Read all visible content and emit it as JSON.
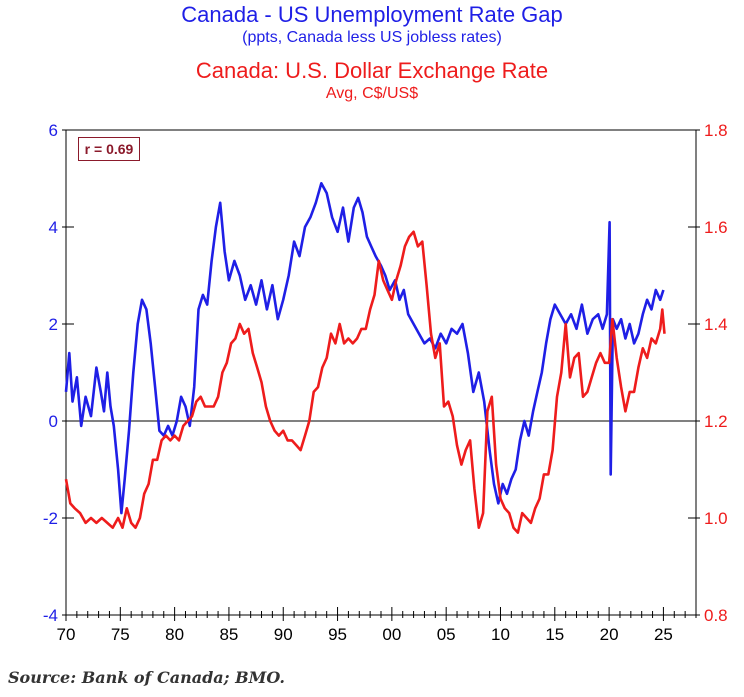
{
  "titles": {
    "line1": "Canada - US Unemployment Rate Gap",
    "line2": "(ppts, Canada less US jobless rates)",
    "line3": "Canada: U.S. Dollar Exchange Rate",
    "line4": "Avg, C$/US$"
  },
  "source": "Source: Bank of Canada; BMO.",
  "annotation": "r = 0.69",
  "colors": {
    "gap": "#1f1fe6",
    "fx": "#ee1c1c",
    "annotation": "#8b1a2b",
    "axis": "#000000"
  },
  "chart_data": {
    "type": "line",
    "x_ticks": [
      "70",
      "75",
      "80",
      "85",
      "90",
      "95",
      "00",
      "05",
      "10",
      "15",
      "20",
      "25"
    ],
    "xlim": [
      1970,
      2028
    ],
    "left_axis": {
      "ticks": [
        "-4",
        "-2",
        "0",
        "2",
        "4",
        "6"
      ],
      "ylim": [
        -4,
        6
      ]
    },
    "right_axis": {
      "ticks": [
        "0.8",
        "1.0",
        "1.2",
        "1.4",
        "1.6",
        "1.8"
      ],
      "ylim": [
        0.8,
        1.8
      ]
    },
    "reference_line": 0,
    "legend": "none",
    "grid": false,
    "series": [
      {
        "name": "Canada - US Unemployment Rate Gap",
        "axis": "left",
        "points": [
          [
            1970.0,
            0.6
          ],
          [
            1970.3,
            1.4
          ],
          [
            1970.6,
            0.4
          ],
          [
            1971.0,
            0.9
          ],
          [
            1971.4,
            -0.1
          ],
          [
            1971.8,
            0.5
          ],
          [
            1972.3,
            0.1
          ],
          [
            1972.8,
            1.1
          ],
          [
            1973.2,
            0.6
          ],
          [
            1973.5,
            0.2
          ],
          [
            1973.8,
            1.0
          ],
          [
            1974.1,
            0.3
          ],
          [
            1974.4,
            -0.1
          ],
          [
            1974.8,
            -1.0
          ],
          [
            1975.1,
            -1.9
          ],
          [
            1975.4,
            -1.2
          ],
          [
            1975.8,
            -0.2
          ],
          [
            1976.2,
            1.0
          ],
          [
            1976.6,
            2.0
          ],
          [
            1977.0,
            2.5
          ],
          [
            1977.4,
            2.3
          ],
          [
            1977.8,
            1.6
          ],
          [
            1978.2,
            0.7
          ],
          [
            1978.6,
            -0.2
          ],
          [
            1979.0,
            -0.3
          ],
          [
            1979.4,
            -0.1
          ],
          [
            1979.8,
            -0.3
          ],
          [
            1980.2,
            0.0
          ],
          [
            1980.6,
            0.5
          ],
          [
            1981.0,
            0.3
          ],
          [
            1981.4,
            -0.1
          ],
          [
            1981.8,
            0.7
          ],
          [
            1982.2,
            2.3
          ],
          [
            1982.6,
            2.6
          ],
          [
            1983.0,
            2.4
          ],
          [
            1983.4,
            3.3
          ],
          [
            1983.8,
            4.0
          ],
          [
            1984.2,
            4.5
          ],
          [
            1984.6,
            3.5
          ],
          [
            1985.0,
            2.9
          ],
          [
            1985.5,
            3.3
          ],
          [
            1986.0,
            3.0
          ],
          [
            1986.5,
            2.5
          ],
          [
            1987.0,
            2.8
          ],
          [
            1987.5,
            2.4
          ],
          [
            1988.0,
            2.9
          ],
          [
            1988.5,
            2.3
          ],
          [
            1989.0,
            2.8
          ],
          [
            1989.5,
            2.1
          ],
          [
            1990.0,
            2.5
          ],
          [
            1990.5,
            3.0
          ],
          [
            1991.0,
            3.7
          ],
          [
            1991.5,
            3.4
          ],
          [
            1992.0,
            4.0
          ],
          [
            1992.5,
            4.2
          ],
          [
            1993.0,
            4.5
          ],
          [
            1993.5,
            4.9
          ],
          [
            1994.0,
            4.7
          ],
          [
            1994.5,
            4.2
          ],
          [
            1995.0,
            3.9
          ],
          [
            1995.5,
            4.4
          ],
          [
            1996.0,
            3.7
          ],
          [
            1996.5,
            4.4
          ],
          [
            1996.9,
            4.6
          ],
          [
            1997.3,
            4.3
          ],
          [
            1997.7,
            3.8
          ],
          [
            1998.1,
            3.6
          ],
          [
            1998.5,
            3.4
          ],
          [
            1999.0,
            3.2
          ],
          [
            1999.4,
            3.0
          ],
          [
            1999.8,
            2.7
          ],
          [
            2000.3,
            2.9
          ],
          [
            2000.7,
            2.5
          ],
          [
            2001.1,
            2.7
          ],
          [
            2001.5,
            2.2
          ],
          [
            2002.0,
            2.0
          ],
          [
            2002.5,
            1.8
          ],
          [
            2003.0,
            1.6
          ],
          [
            2003.5,
            1.7
          ],
          [
            2004.0,
            1.5
          ],
          [
            2004.5,
            1.8
          ],
          [
            2005.0,
            1.6
          ],
          [
            2005.5,
            1.9
          ],
          [
            2006.0,
            1.8
          ],
          [
            2006.5,
            2.0
          ],
          [
            2007.0,
            1.4
          ],
          [
            2007.5,
            0.6
          ],
          [
            2008.0,
            1.0
          ],
          [
            2008.5,
            0.4
          ],
          [
            2009.0,
            -0.6
          ],
          [
            2009.4,
            -1.3
          ],
          [
            2009.8,
            -1.7
          ],
          [
            2010.2,
            -1.3
          ],
          [
            2010.6,
            -1.5
          ],
          [
            2011.0,
            -1.2
          ],
          [
            2011.4,
            -1.0
          ],
          [
            2011.8,
            -0.4
          ],
          [
            2012.2,
            0.0
          ],
          [
            2012.6,
            -0.3
          ],
          [
            2013.0,
            0.2
          ],
          [
            2013.4,
            0.6
          ],
          [
            2013.8,
            1.0
          ],
          [
            2014.2,
            1.6
          ],
          [
            2014.6,
            2.1
          ],
          [
            2015.0,
            2.4
          ],
          [
            2015.5,
            2.2
          ],
          [
            2016.0,
            2.0
          ],
          [
            2016.5,
            2.2
          ],
          [
            2017.0,
            1.9
          ],
          [
            2017.5,
            2.4
          ],
          [
            2018.0,
            1.8
          ],
          [
            2018.5,
            2.1
          ],
          [
            2019.0,
            2.2
          ],
          [
            2019.4,
            1.9
          ],
          [
            2019.8,
            2.2
          ],
          [
            2020.05,
            4.1
          ],
          [
            2020.15,
            -1.1
          ],
          [
            2020.35,
            2.1
          ],
          [
            2020.7,
            1.9
          ],
          [
            2021.1,
            2.1
          ],
          [
            2021.5,
            1.7
          ],
          [
            2021.9,
            2.0
          ],
          [
            2022.3,
            1.6
          ],
          [
            2022.7,
            1.8
          ],
          [
            2023.1,
            2.2
          ],
          [
            2023.5,
            2.5
          ],
          [
            2023.9,
            2.3
          ],
          [
            2024.3,
            2.7
          ],
          [
            2024.7,
            2.5
          ],
          [
            2025.0,
            2.7
          ]
        ]
      },
      {
        "name": "Canada: U.S. Dollar Exchange Rate",
        "axis": "right",
        "points": [
          [
            1970.0,
            1.08
          ],
          [
            1970.4,
            1.03
          ],
          [
            1970.8,
            1.02
          ],
          [
            1971.3,
            1.01
          ],
          [
            1971.8,
            0.99
          ],
          [
            1972.3,
            1.0
          ],
          [
            1972.8,
            0.99
          ],
          [
            1973.3,
            1.0
          ],
          [
            1973.8,
            0.99
          ],
          [
            1974.3,
            0.98
          ],
          [
            1974.8,
            1.0
          ],
          [
            1975.2,
            0.98
          ],
          [
            1975.6,
            1.02
          ],
          [
            1976.0,
            0.99
          ],
          [
            1976.4,
            0.98
          ],
          [
            1976.8,
            1.0
          ],
          [
            1977.2,
            1.05
          ],
          [
            1977.6,
            1.07
          ],
          [
            1978.0,
            1.12
          ],
          [
            1978.4,
            1.12
          ],
          [
            1978.8,
            1.16
          ],
          [
            1979.2,
            1.17
          ],
          [
            1979.6,
            1.16
          ],
          [
            1980.0,
            1.17
          ],
          [
            1980.4,
            1.16
          ],
          [
            1980.8,
            1.19
          ],
          [
            1981.2,
            1.2
          ],
          [
            1981.6,
            1.21
          ],
          [
            1982.0,
            1.24
          ],
          [
            1982.4,
            1.25
          ],
          [
            1982.8,
            1.23
          ],
          [
            1983.2,
            1.23
          ],
          [
            1983.6,
            1.23
          ],
          [
            1984.0,
            1.25
          ],
          [
            1984.4,
            1.3
          ],
          [
            1984.8,
            1.32
          ],
          [
            1985.2,
            1.36
          ],
          [
            1985.6,
            1.37
          ],
          [
            1986.0,
            1.4
          ],
          [
            1986.4,
            1.38
          ],
          [
            1986.8,
            1.39
          ],
          [
            1987.2,
            1.34
          ],
          [
            1987.6,
            1.31
          ],
          [
            1988.0,
            1.28
          ],
          [
            1988.4,
            1.23
          ],
          [
            1988.8,
            1.2
          ],
          [
            1989.2,
            1.18
          ],
          [
            1989.6,
            1.17
          ],
          [
            1990.0,
            1.18
          ],
          [
            1990.4,
            1.16
          ],
          [
            1990.8,
            1.16
          ],
          [
            1991.2,
            1.15
          ],
          [
            1991.6,
            1.14
          ],
          [
            1992.0,
            1.17
          ],
          [
            1992.4,
            1.2
          ],
          [
            1992.8,
            1.26
          ],
          [
            1993.2,
            1.27
          ],
          [
            1993.6,
            1.31
          ],
          [
            1994.0,
            1.33
          ],
          [
            1994.4,
            1.38
          ],
          [
            1994.8,
            1.36
          ],
          [
            1995.2,
            1.4
          ],
          [
            1995.6,
            1.36
          ],
          [
            1996.0,
            1.37
          ],
          [
            1996.4,
            1.36
          ],
          [
            1996.8,
            1.37
          ],
          [
            1997.2,
            1.39
          ],
          [
            1997.6,
            1.39
          ],
          [
            1998.0,
            1.43
          ],
          [
            1998.4,
            1.46
          ],
          [
            1998.8,
            1.53
          ],
          [
            1999.2,
            1.49
          ],
          [
            1999.6,
            1.47
          ],
          [
            2000.0,
            1.45
          ],
          [
            2000.4,
            1.49
          ],
          [
            2000.8,
            1.52
          ],
          [
            2001.2,
            1.56
          ],
          [
            2001.6,
            1.58
          ],
          [
            2002.0,
            1.59
          ],
          [
            2002.4,
            1.56
          ],
          [
            2002.8,
            1.57
          ],
          [
            2003.2,
            1.48
          ],
          [
            2003.6,
            1.38
          ],
          [
            2004.0,
            1.33
          ],
          [
            2004.4,
            1.36
          ],
          [
            2004.8,
            1.23
          ],
          [
            2005.2,
            1.24
          ],
          [
            2005.6,
            1.21
          ],
          [
            2006.0,
            1.15
          ],
          [
            2006.4,
            1.11
          ],
          [
            2006.8,
            1.14
          ],
          [
            2007.2,
            1.16
          ],
          [
            2007.6,
            1.06
          ],
          [
            2008.0,
            0.98
          ],
          [
            2008.4,
            1.01
          ],
          [
            2008.8,
            1.22
          ],
          [
            2009.2,
            1.25
          ],
          [
            2009.6,
            1.11
          ],
          [
            2010.0,
            1.04
          ],
          [
            2010.4,
            1.02
          ],
          [
            2010.8,
            1.01
          ],
          [
            2011.2,
            0.98
          ],
          [
            2011.6,
            0.97
          ],
          [
            2012.0,
            1.01
          ],
          [
            2012.4,
            1.0
          ],
          [
            2012.8,
            0.99
          ],
          [
            2013.2,
            1.02
          ],
          [
            2013.6,
            1.04
          ],
          [
            2014.0,
            1.09
          ],
          [
            2014.4,
            1.09
          ],
          [
            2014.8,
            1.14
          ],
          [
            2015.2,
            1.25
          ],
          [
            2015.6,
            1.3
          ],
          [
            2016.0,
            1.4
          ],
          [
            2016.4,
            1.29
          ],
          [
            2016.8,
            1.33
          ],
          [
            2017.2,
            1.34
          ],
          [
            2017.6,
            1.25
          ],
          [
            2018.0,
            1.26
          ],
          [
            2018.4,
            1.29
          ],
          [
            2018.8,
            1.32
          ],
          [
            2019.2,
            1.34
          ],
          [
            2019.6,
            1.32
          ],
          [
            2020.0,
            1.32
          ],
          [
            2020.3,
            1.41
          ],
          [
            2020.7,
            1.33
          ],
          [
            2021.1,
            1.27
          ],
          [
            2021.5,
            1.22
          ],
          [
            2021.9,
            1.26
          ],
          [
            2022.3,
            1.26
          ],
          [
            2022.7,
            1.31
          ],
          [
            2023.1,
            1.35
          ],
          [
            2023.5,
            1.33
          ],
          [
            2023.9,
            1.37
          ],
          [
            2024.3,
            1.36
          ],
          [
            2024.7,
            1.39
          ],
          [
            2024.9,
            1.43
          ],
          [
            2025.1,
            1.38
          ]
        ]
      }
    ]
  }
}
